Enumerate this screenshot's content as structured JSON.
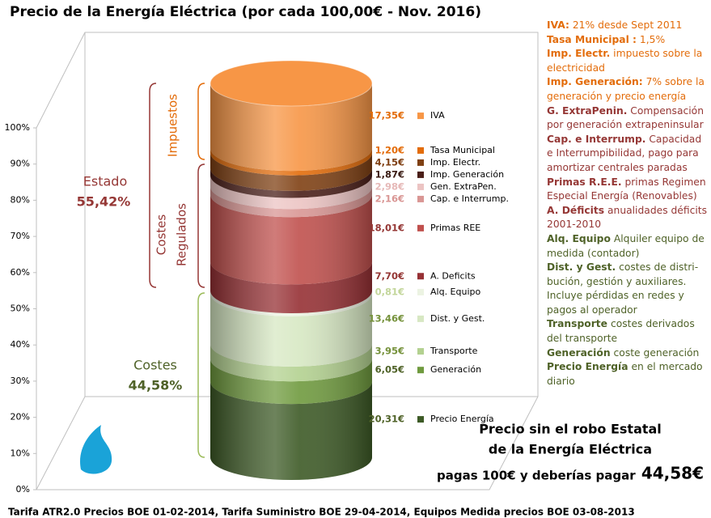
{
  "chart_data": {
    "type": "stacked-cylinder",
    "title": "Precio de la Energía Eléctrica (por cada 100,00€ - Nov. 2016)",
    "ylim": [
      0,
      100
    ],
    "yticks": [
      {
        "value": 0,
        "label": "0%"
      },
      {
        "value": 10,
        "label": "10%"
      },
      {
        "value": 20,
        "label": "20%"
      },
      {
        "value": 30,
        "label": "30%"
      },
      {
        "value": 40,
        "label": "40%"
      },
      {
        "value": 50,
        "label": "50%"
      },
      {
        "value": 60,
        "label": "60%"
      },
      {
        "value": 70,
        "label": "70%"
      },
      {
        "value": 80,
        "label": "80%"
      },
      {
        "value": 90,
        "label": "90%"
      },
      {
        "value": 100,
        "label": "100%"
      }
    ],
    "series": [
      {
        "name": "Precio Energía",
        "color": "#3d5a26",
        "label_color": "#4f6228",
        "values": [
          20.31
        ],
        "value_labels": [
          "20,31€"
        ]
      },
      {
        "name": "Generación",
        "color": "#6f9a3e",
        "label_color": "#4f6228",
        "values": [
          6.05
        ],
        "value_labels": [
          "6,05€"
        ]
      },
      {
        "name": "Transporte",
        "color": "#b3d190",
        "label_color": "#76923c",
        "values": [
          3.95
        ],
        "value_labels": [
          "3,95€"
        ]
      },
      {
        "name": "Dist. y Gest.",
        "color": "#d7e8c3",
        "label_color": "#76923c",
        "values": [
          13.46
        ],
        "value_labels": [
          "13,46€"
        ]
      },
      {
        "name": "Alq. Equipo",
        "color": "#ecf3e2",
        "label_color": "#c3d69b",
        "values": [
          0.81
        ],
        "value_labels": [
          "0,81€"
        ]
      },
      {
        "name": "A. Deficits",
        "color": "#963034",
        "label_color": "#953735",
        "values": [
          7.7
        ],
        "value_labels": [
          "7,70€"
        ]
      },
      {
        "name": "Primas REE",
        "color": "#c0504d",
        "label_color": "#953735",
        "values": [
          18.01
        ],
        "value_labels": [
          "18,01€"
        ]
      },
      {
        "name": "Cap. e Interrump.",
        "color": "#d99694",
        "label_color": "#d99694",
        "values": [
          2.16
        ],
        "value_labels": [
          "2,16€"
        ]
      },
      {
        "name": "Gen. ExtraPen.",
        "color": "#ecc4c3",
        "label_color": "#e6b9b8",
        "values": [
          2.98
        ],
        "value_labels": [
          "2,98€"
        ]
      },
      {
        "name": "Imp. Generación",
        "color": "#4a1e18",
        "label_color": "#3b1c14",
        "values": [
          1.87
        ],
        "value_labels": [
          "1,87€"
        ]
      },
      {
        "name": "Imp. Electr.",
        "color": "#7f4013",
        "label_color": "#7f3f12",
        "values": [
          4.15
        ],
        "value_labels": [
          "4,15€"
        ]
      },
      {
        "name": "Tasa Municipal",
        "color": "#e36c0a",
        "label_color": "#e36c0a",
        "values": [
          1.2
        ],
        "value_labels": [
          "1,20€"
        ]
      },
      {
        "name": "IVA",
        "color": "#f79646",
        "label_color": "#e36c0a",
        "values": [
          17.35
        ],
        "value_labels": [
          "17,35€"
        ]
      }
    ],
    "groups": {
      "estado": {
        "label": "Estado",
        "total": "55,42%"
      },
      "impuestos": "Impuestos",
      "regulados": [
        "Costes",
        "Regulados"
      ],
      "costes": {
        "label": "Costes",
        "total": "44,58%"
      }
    },
    "notes": [
      {
        "term": "IVA:",
        "text": "21% desde Sept 2011",
        "color": "#e36c0a"
      },
      {
        "term": "Tasa Municipal :",
        "text": "1,5%",
        "color": "#e36c0a"
      },
      {
        "term": "Imp. Electr.",
        "text": "impuesto sobre la electricidad",
        "color": "#e36c0a"
      },
      {
        "term": "Imp. Generación:",
        "text": "7%  sobre la generación y precio energía",
        "color": "#e36c0a"
      },
      {
        "term": "G. ExtraPenin.",
        "text": "Compensación por generación extrapeninsular",
        "color": "#953735"
      },
      {
        "term": "Cap. e Interrump.",
        "text": "Capacidad e Interrumpibilidad, pago para amortizar centrales paradas",
        "color": "#953735"
      },
      {
        "term": "Primas R.E.E.",
        "text": "primas Regimen Especial Energía (Renovables)",
        "color": "#953735"
      },
      {
        "term": "A. Déficits",
        "text": "anualidades déficits 2001-2010",
        "color": "#953735"
      },
      {
        "term": "Alq. Equipo",
        "text": "Alquiler equipo de medida (contador)",
        "color": "#4f6228"
      },
      {
        "term": "Dist. y Gest.",
        "text": "costes de distri-bución, gestión y auxiliares. Incluye pérdidas en redes y pagos al operador",
        "color": "#4f6228"
      },
      {
        "term": "Transporte",
        "text": "costes derivados del transporte",
        "color": "#4f6228"
      },
      {
        "term": "Generación",
        "text": "coste generación",
        "color": "#4f6228"
      },
      {
        "term": "Precio Energía",
        "text": "en el mercado diario",
        "color": "#4f6228"
      }
    ],
    "summary": {
      "line1": "Precio sin el robo Estatal",
      "line2": "de la Energía Eléctrica",
      "line3": "pagas 100€ y deberías pagar",
      "amount": "44,58€"
    },
    "footnote": "Tarifa ATR2.0 Precios BOE 01-02-2014,  Tarifa Suministro BOE 29-04-2014,  Equipos Medida precios BOE 03-08-2013"
  }
}
